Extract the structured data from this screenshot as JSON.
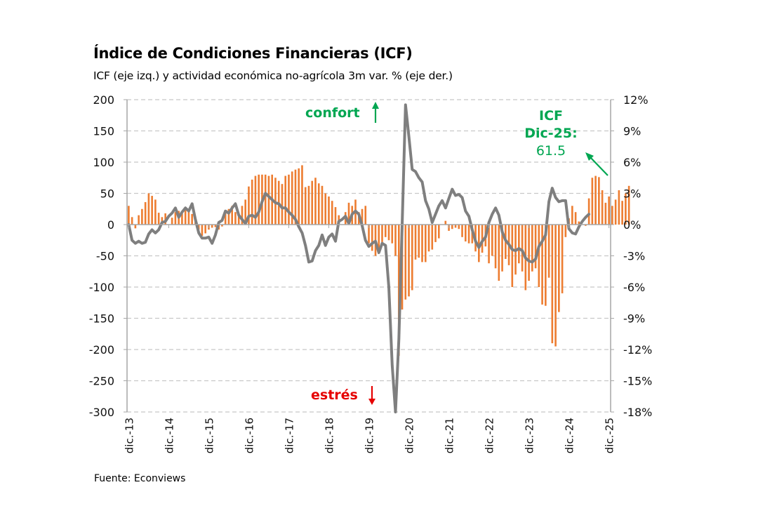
{
  "header": {
    "title": "Índice de Condiciones Financieras (ICF)",
    "subtitle": "ICF (eje izq.) y actividad económica no-agrícola 3m var. % (eje der.)"
  },
  "footer": {
    "source": "Fuente: Econviews"
  },
  "colors": {
    "bars": "#ed7d31",
    "line": "#7f7f7f",
    "confort": "#00a651",
    "estres": "#e60000",
    "grid": "#c8c8c8",
    "axis": "#a6a6a6"
  },
  "annotations": {
    "confort": "confort",
    "estres": "estrés",
    "icf_label_1": "ICF",
    "icf_label_2": "Dic-25:",
    "icf_value": "61.5"
  },
  "chart_data": {
    "type": "bar+line",
    "title": "Índice de Condiciones Financieras (ICF)",
    "subtitle": "ICF (eje izq.) y actividad económica no-agrícola 3m var. % (eje der.)",
    "x_ticks": [
      "dic.-13",
      "dic.-14",
      "dic.-15",
      "dic.-16",
      "dic.-17",
      "dic.-18",
      "dic.-19",
      "dic.-20",
      "dic.-21",
      "dic.-22",
      "dic.-23",
      "dic.-24",
      "dic.-25"
    ],
    "frequency": "monthly",
    "x_start": "dic.-13",
    "x_end": "dic.-25",
    "y_left": {
      "label": "ICF",
      "min": -300,
      "max": 200,
      "step": 50,
      "ticks": [
        "200",
        "150",
        "100",
        "50",
        "0",
        "-50",
        "-100",
        "-150",
        "-200",
        "-250",
        "-300"
      ]
    },
    "y_right": {
      "label": "actividad económica no-agrícola 3m var. %",
      "min": -18,
      "max": 12,
      "step": 3,
      "ticks": [
        "12%",
        "9%",
        "6%",
        "3%",
        "0%",
        "-3%",
        "-6%",
        "-9%",
        "-12%",
        "-15%",
        "-18%"
      ]
    },
    "grid": true,
    "legend": "none",
    "series": [
      {
        "name": "ICF (eje izq.)",
        "type": "bar",
        "axis": "left",
        "values": [
          30,
          12,
          -6,
          15,
          25,
          36,
          50,
          46,
          40,
          19,
          12,
          18,
          0,
          11,
          20,
          22,
          18,
          24,
          22,
          17,
          5,
          -8,
          -18,
          -14,
          -8,
          -5,
          -4,
          -8,
          -3,
          20,
          25,
          30,
          20,
          15,
          30,
          40,
          61,
          72,
          78,
          80,
          80,
          80,
          78,
          80,
          75,
          70,
          65,
          78,
          80,
          85,
          88,
          90,
          95,
          60,
          62,
          70,
          75,
          66,
          62,
          50,
          45,
          38,
          28,
          15,
          0,
          20,
          35,
          30,
          40,
          20,
          25,
          30,
          -30,
          -42,
          -50,
          -45,
          -28,
          -20,
          -25,
          -30,
          -50,
          -210,
          -136,
          -120,
          -115,
          -105,
          -56,
          -53,
          -60,
          -60,
          -43,
          -40,
          -28,
          -22,
          0,
          6,
          -10,
          -7,
          -5,
          -7,
          -20,
          -27,
          -30,
          -30,
          -43,
          -60,
          -45,
          -35,
          -62,
          -50,
          -70,
          -90,
          -75,
          -55,
          -65,
          -100,
          -80,
          -62,
          -75,
          -105,
          -90,
          -75,
          -70,
          -100,
          -128,
          -130,
          -85,
          -190,
          -195,
          -140,
          -110,
          -20,
          10,
          30,
          20,
          5,
          0,
          -2,
          42,
          75,
          78,
          76,
          55,
          35,
          45,
          30,
          40,
          55,
          38,
          50,
          62
        ],
        "last_value": 61.5
      },
      {
        "name": "Actividad económica no-agrícola 3m var. % (eje der.)",
        "type": "line",
        "axis": "right",
        "values": [
          0,
          -1.5,
          -1.8,
          -1.6,
          -1.8,
          -1.7,
          -0.9,
          -0.5,
          -0.8,
          -0.5,
          0.2,
          0.3,
          0.8,
          1.1,
          1.6,
          0.7,
          1.2,
          1.6,
          1.3,
          2.0,
          0.5,
          -0.8,
          -1.3,
          -1.3,
          -1.2,
          -1.8,
          -1.0,
          0.2,
          0.4,
          1.3,
          1.1,
          1.6,
          2.0,
          0.9,
          0.5,
          0.1,
          0.8,
          0.9,
          0.7,
          1.2,
          2.2,
          3.0,
          2.7,
          2.4,
          2.1,
          2.0,
          1.6,
          1.6,
          1.2,
          0.9,
          0.5,
          -0.2,
          -0.8,
          -2.0,
          -3.6,
          -3.5,
          -2.5,
          -2.0,
          -1.0,
          -2.0,
          -1.2,
          -0.9,
          -1.6,
          0.3,
          0.5,
          0.8,
          0.1,
          1.0,
          1.3,
          1.0,
          -0.1,
          -1.5,
          -2.1,
          -1.8,
          -1.6,
          -2.7,
          -1.8,
          -2.0,
          -6.0,
          -13.5,
          -18.0,
          -11.0,
          0.0,
          11.5,
          8.5,
          5.3,
          5.1,
          4.5,
          4.1,
          2.3,
          1.5,
          0.2,
          1.0,
          1.8,
          2.3,
          1.6,
          2.5,
          3.4,
          2.8,
          2.9,
          2.6,
          1.3,
          0.8,
          -0.5,
          -1.6,
          -2.2,
          -1.6,
          -1.2,
          0.2,
          1.0,
          1.6,
          0.9,
          -0.7,
          -1.5,
          -1.9,
          -2.4,
          -2.5,
          -2.3,
          -2.5,
          -3.2,
          -3.5,
          -3.6,
          -3.3,
          -2.1,
          -1.6,
          -1.0,
          2.2,
          3.5,
          2.6,
          2.2,
          2.3,
          2.3,
          -0.4,
          -0.8,
          -0.9,
          -0.2,
          0.3,
          0.7,
          1.0
        ],
        "note": "line ends before dic.-25 (last point ~nov.-25)"
      }
    ]
  }
}
